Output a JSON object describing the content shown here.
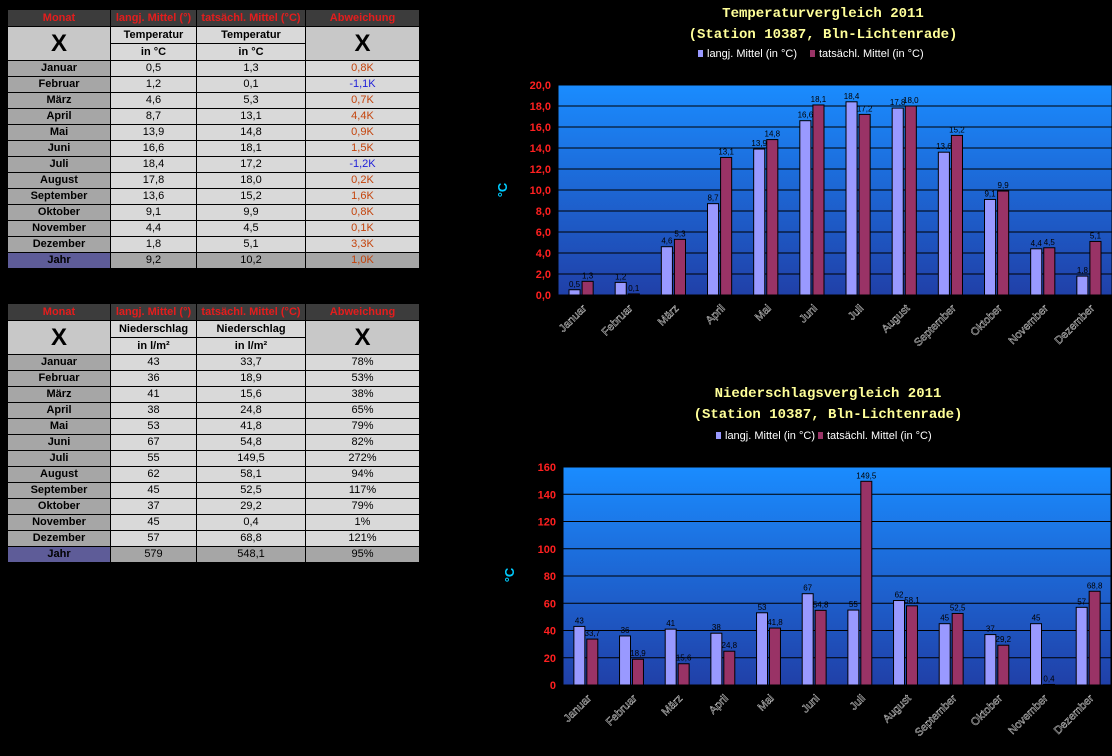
{
  "temp_table": {
    "headers": [
      "Monat",
      "langj. Mittel (°)",
      "tatsächl. Mittel (°C)",
      "Abweichung"
    ],
    "x_symbol": "X",
    "sub_a1": "Temperatur",
    "sub_a2": "in °C",
    "sub_b1": "Temperatur",
    "sub_b2": "in °C",
    "rows": [
      {
        "m": "Januar",
        "a": "0,5",
        "b": "1,3",
        "d": "0,8K"
      },
      {
        "m": "Februar",
        "a": "1,2",
        "b": "0,1",
        "d": "-1,1K"
      },
      {
        "m": "März",
        "a": "4,6",
        "b": "5,3",
        "d": "0,7K"
      },
      {
        "m": "April",
        "a": "8,7",
        "b": "13,1",
        "d": "4,4K"
      },
      {
        "m": "Mai",
        "a": "13,9",
        "b": "14,8",
        "d": "0,9K"
      },
      {
        "m": "Juni",
        "a": "16,6",
        "b": "18,1",
        "d": "1,5K"
      },
      {
        "m": "Juli",
        "a": "18,4",
        "b": "17,2",
        "d": "-1,2K"
      },
      {
        "m": "August",
        "a": "17,8",
        "b": "18,0",
        "d": "0,2K"
      },
      {
        "m": "September",
        "a": "13,6",
        "b": "15,2",
        "d": "1,6K"
      },
      {
        "m": "Oktober",
        "a": "9,1",
        "b": "9,9",
        "d": "0,8K"
      },
      {
        "m": "November",
        "a": "4,4",
        "b": "4,5",
        "d": "0,1K"
      },
      {
        "m": "Dezember",
        "a": "1,8",
        "b": "5,1",
        "d": "3,3K"
      }
    ],
    "year": {
      "m": "Jahr",
      "a": "9,2",
      "b": "10,2",
      "d": "1,0K"
    }
  },
  "precip_table": {
    "headers": [
      "Monat",
      "langj. Mittel (°)",
      "tatsächl. Mittel (°C)",
      "Abweichung"
    ],
    "x_symbol": "X",
    "sub_a1": "Niederschlag",
    "sub_a2": "in l/m²",
    "sub_b1": "Niederschlag",
    "sub_b2": "in l/m²",
    "rows": [
      {
        "m": "Januar",
        "a": "43",
        "b": "33,7",
        "d": "78%"
      },
      {
        "m": "Februar",
        "a": "36",
        "b": "18,9",
        "d": "53%"
      },
      {
        "m": "März",
        "a": "41",
        "b": "15,6",
        "d": "38%"
      },
      {
        "m": "April",
        "a": "38",
        "b": "24,8",
        "d": "65%"
      },
      {
        "m": "Mai",
        "a": "53",
        "b": "41,8",
        "d": "79%"
      },
      {
        "m": "Juni",
        "a": "67",
        "b": "54,8",
        "d": "82%"
      },
      {
        "m": "Juli",
        "a": "55",
        "b": "149,5",
        "d": "272%"
      },
      {
        "m": "August",
        "a": "62",
        "b": "58,1",
        "d": "94%"
      },
      {
        "m": "September",
        "a": "45",
        "b": "52,5",
        "d": "117%"
      },
      {
        "m": "Oktober",
        "a": "37",
        "b": "29,2",
        "d": "79%"
      },
      {
        "m": "November",
        "a": "45",
        "b": "0,4",
        "d": "1%"
      },
      {
        "m": "Dezember",
        "a": "57",
        "b": "68,8",
        "d": "121%"
      }
    ],
    "year": {
      "m": "Jahr",
      "a": "579",
      "b": "548,1",
      "d": "95%"
    }
  },
  "chart_data": [
    {
      "type": "bar",
      "title": "Temperaturvergleich 2011",
      "subtitle": "(Station 10387, Bln-Lichtenrade)",
      "ylabel": "°C",
      "xlabel": "",
      "ylim": [
        0,
        20
      ],
      "yticks": [
        "0,0",
        "2,0",
        "4,0",
        "6,0",
        "8,0",
        "10,0",
        "12,0",
        "14,0",
        "16,0",
        "18,0",
        "20,0"
      ],
      "grid": true,
      "legend": "top",
      "categories": [
        "Januar",
        "Februar",
        "März",
        "April",
        "Mai",
        "Juni",
        "Juli",
        "August",
        "September",
        "Oktober",
        "November",
        "Dezember"
      ],
      "series": [
        {
          "name": "langj. Mittel (in °C)",
          "color": "#9999ff",
          "values": [
            0.5,
            1.2,
            4.6,
            8.7,
            13.9,
            16.6,
            18.4,
            17.8,
            13.6,
            9.1,
            4.4,
            1.8
          ],
          "labels": [
            "0,5",
            "1,2",
            "4,6",
            "8,7",
            "13,9",
            "16,6",
            "18,4",
            "17,8",
            "13,6",
            "9,1",
            "4,4",
            "1,8"
          ]
        },
        {
          "name": "tatsächl. Mittel (in °C)",
          "color": "#993366",
          "values": [
            1.3,
            0.1,
            5.3,
            13.1,
            14.8,
            18.1,
            17.2,
            18.0,
            15.2,
            9.9,
            4.5,
            5.1
          ],
          "labels": [
            "1,3",
            "0,1",
            "5,3",
            "13,1",
            "14,8",
            "18,1",
            "17,2",
            "18,0",
            "15,2",
            "9,9",
            "4,5",
            "5,1"
          ]
        }
      ]
    },
    {
      "type": "bar",
      "title": "Niederschlagsvergleich 2011",
      "subtitle": "(Station 10387, Bln-Lichtenrade)",
      "ylabel": "°C",
      "xlabel": "",
      "ylim": [
        0,
        160
      ],
      "yticks": [
        "0",
        "20",
        "40",
        "60",
        "80",
        "100",
        "120",
        "140",
        "160"
      ],
      "grid": true,
      "legend": "top",
      "categories": [
        "Januar",
        "Februar",
        "März",
        "April",
        "Mai",
        "Juni",
        "Juli",
        "August",
        "September",
        "Oktober",
        "November",
        "Dezember"
      ],
      "series": [
        {
          "name": "langj. Mittel (in °C)",
          "color": "#9999ff",
          "values": [
            43,
            36,
            41,
            38,
            53,
            67,
            55,
            62,
            45,
            37,
            45,
            57
          ],
          "labels": [
            "43",
            "36",
            "41",
            "38",
            "53",
            "67",
            "55",
            "62",
            "45",
            "37",
            "45",
            "57"
          ]
        },
        {
          "name": "tatsächl. Mittel (in °C)",
          "color": "#993366",
          "values": [
            33.7,
            18.9,
            15.6,
            24.8,
            41.8,
            54.8,
            149.5,
            58.1,
            52.5,
            29.2,
            0.4,
            68.8
          ],
          "labels": [
            "33,7",
            "18,9",
            "15,6",
            "24,8",
            "41,8",
            "54,8",
            "149,5",
            "58,1",
            "52,5",
            "29,2",
            "0,4",
            "68,8"
          ]
        }
      ]
    }
  ],
  "colors": {
    "header_red": "#e41d1d",
    "dev_positive": "#c4430b",
    "dev_negative": "#1f1fd8",
    "title_yellow": "#ffff99",
    "axis_red": "#ff2020",
    "ylabel_cyan": "#00ccff",
    "year_cell": "#5e5c98"
  }
}
